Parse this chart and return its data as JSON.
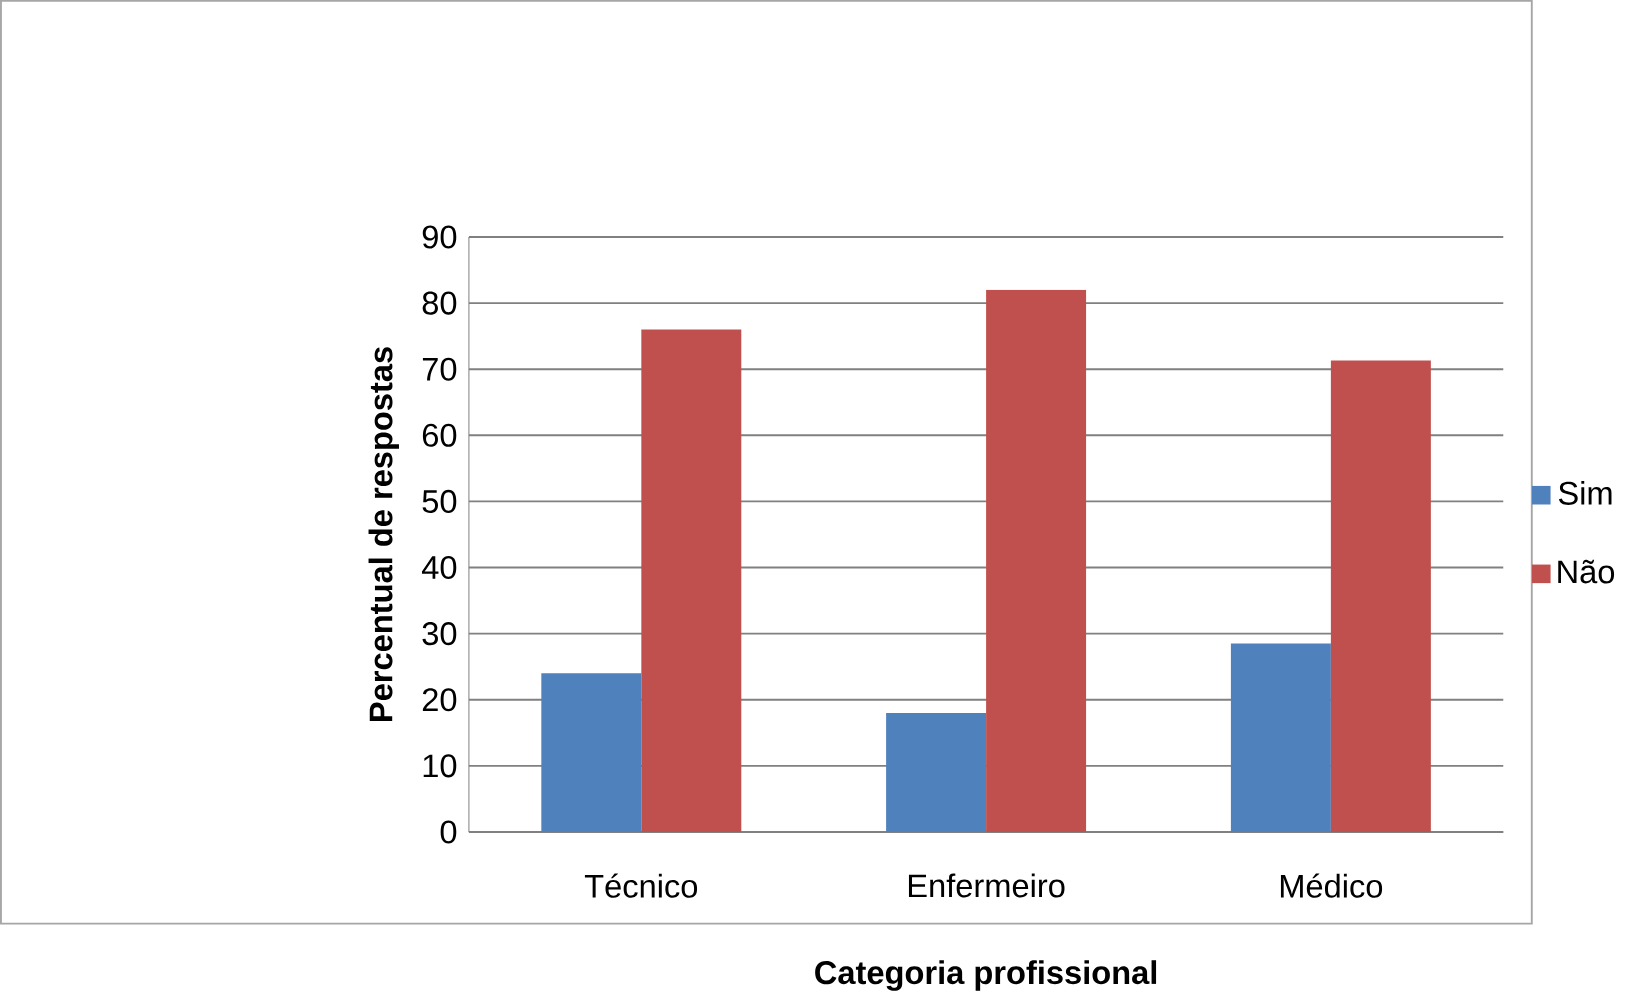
{
  "chart_data": {
    "type": "bar",
    "xlabel": "Categoria profissional",
    "ylabel": "Percentual de respostas",
    "categories": [
      "Técnico",
      "Enfermeiro",
      "Médico"
    ],
    "series": [
      {
        "name": "Sim",
        "color": "#4f81bd",
        "values": [
          24,
          18,
          28.5
        ]
      },
      {
        "name": "Não",
        "color": "#c0504d",
        "values": [
          76,
          82,
          71.3
        ]
      }
    ],
    "ylim": [
      0,
      90
    ],
    "yticks": [
      0,
      10,
      20,
      30,
      40,
      50,
      60,
      70,
      80,
      90
    ],
    "grid": "y",
    "legend": "right"
  }
}
